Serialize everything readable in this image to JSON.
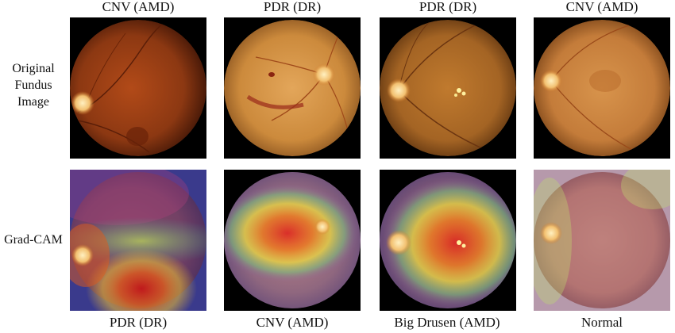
{
  "figure": {
    "top_labels": [
      "CNV (AMD)",
      "PDR (DR)",
      "PDR (DR)",
      "CNV (AMD)"
    ],
    "bottom_labels": [
      "PDR (DR)",
      "CNV (AMD)",
      "Big Drusen (AMD)",
      "Normal"
    ],
    "row_labels": {
      "original": [
        "Original",
        "Fundus",
        "Image"
      ],
      "gradcam": "Grad-CAM"
    },
    "colors": {
      "fundus_dark": "#6e2a10",
      "fundus_orange": "#c4621e",
      "fundus_light": "#d9a04a",
      "optic_disc": "#f2c98a",
      "heat_red": "#e0201a",
      "heat_yellow": "#f2e23a",
      "heat_blue": "#4a5cc8",
      "heat_purple": "#8a5aa8"
    }
  }
}
